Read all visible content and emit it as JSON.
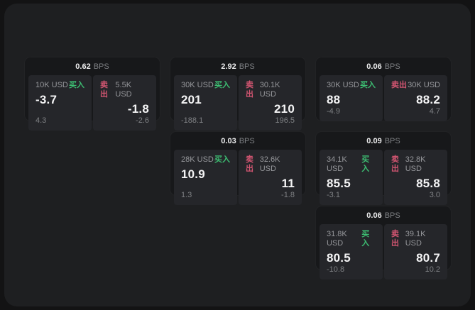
{
  "unit_label": "BPS",
  "labels": {
    "buy": "买入",
    "sell": "卖出"
  },
  "colors": {
    "background": "#131314",
    "window_bg": "#1e1f21",
    "card_bg": "#17181a",
    "panel_bg": "#25262a",
    "buy_green": "#3dbd72",
    "sell_red": "#d25571",
    "value_white": "#f4f4f5",
    "label_gray": "#96979b"
  },
  "cards": [
    {
      "row": 1,
      "col": 1,
      "bps": "0.62",
      "buy": {
        "amount": "10K USD",
        "price": "-3.7",
        "delta": "4.3"
      },
      "sell": {
        "amount": "5.5K USD",
        "price": "-1.8",
        "delta": "-2.6"
      }
    },
    {
      "row": 1,
      "col": 2,
      "bps": "2.92",
      "buy": {
        "amount": "30K USD",
        "price": "201",
        "delta": "-188.1"
      },
      "sell": {
        "amount": "30.1K USD",
        "price": "210",
        "delta": "196.5"
      }
    },
    {
      "row": 1,
      "col": 3,
      "bps": "0.06",
      "buy": {
        "amount": "30K USD",
        "price": "88",
        "delta": "-4.9"
      },
      "sell": {
        "amount": "30K USD",
        "price": "88.2",
        "delta": "4.7"
      }
    },
    {
      "row": 2,
      "col": 2,
      "bps": "0.03",
      "buy": {
        "amount": "28K USD",
        "price": "10.9",
        "delta": "1.3"
      },
      "sell": {
        "amount": "32.6K USD",
        "price": "11",
        "delta": "-1.8"
      }
    },
    {
      "row": 2,
      "col": 3,
      "bps": "0.09",
      "buy": {
        "amount": "34.1K USD",
        "price": "85.5",
        "delta": "-3.1"
      },
      "sell": {
        "amount": "32.8K USD",
        "price": "85.8",
        "delta": "3.0"
      }
    },
    {
      "row": 3,
      "col": 3,
      "bps": "0.06",
      "buy": {
        "amount": "31.8K USD",
        "price": "80.5",
        "delta": "-10.8"
      },
      "sell": {
        "amount": "39.1K USD",
        "price": "80.7",
        "delta": "10.2"
      }
    }
  ]
}
